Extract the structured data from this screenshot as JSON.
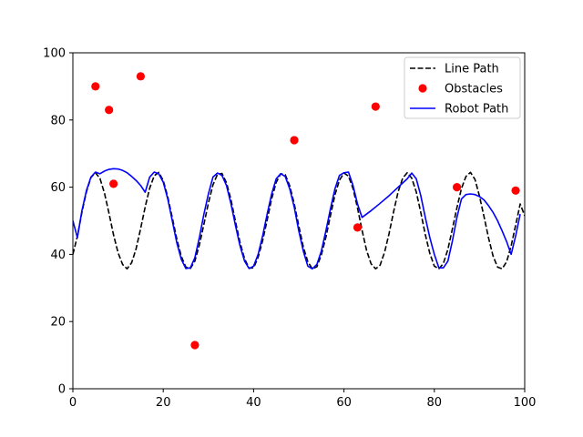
{
  "chart_data": {
    "type": "line",
    "title": "",
    "xlabel": "",
    "ylabel": "",
    "xlim": [
      0,
      100
    ],
    "ylim": [
      0,
      100
    ],
    "xticks": [
      0,
      20,
      40,
      60,
      80,
      100
    ],
    "yticks": [
      0,
      20,
      40,
      60,
      80,
      100
    ],
    "grid": false,
    "legend_position": "top-right",
    "series": [
      {
        "name": "Line Path",
        "kind": "line",
        "style": "dashed",
        "color": "#000000",
        "x": [
          0,
          1,
          2,
          3,
          4,
          5,
          6,
          7,
          8,
          9,
          10,
          11,
          12,
          13,
          14,
          15,
          16,
          17,
          18,
          19,
          20,
          21,
          22,
          23,
          24,
          25,
          26,
          27,
          28,
          29,
          30,
          31,
          32,
          33,
          34,
          35,
          36,
          37,
          38,
          39,
          40,
          41,
          42,
          43,
          44,
          45,
          46,
          47,
          48,
          49,
          50,
          51,
          52,
          53,
          54,
          55,
          56,
          57,
          58,
          59,
          60,
          61,
          62,
          63,
          64,
          65,
          66,
          67,
          68,
          69,
          70,
          71,
          72,
          73,
          74,
          75,
          76,
          77,
          78,
          79,
          80,
          81,
          82,
          83,
          84,
          85,
          86,
          87,
          88,
          89,
          90,
          91,
          92,
          93,
          94,
          95,
          96,
          97,
          98,
          99,
          100
        ],
        "y": [
          40,
          45.4,
          52.5,
          58.6,
          62.9,
          64.3,
          62.6,
          58.2,
          52.2,
          45.8,
          40.5,
          37,
          35.7,
          37.5,
          41.7,
          47.7,
          54.1,
          59.7,
          63.4,
          64.4,
          62,
          57.1,
          50.9,
          44.6,
          39.4,
          36.2,
          35.8,
          38,
          42.8,
          49,
          55.3,
          60.7,
          63.8,
          64.1,
          61.3,
          56.2,
          49.7,
          43.5,
          38.7,
          35.9,
          36,
          39.1,
          44.1,
          50.2,
          56.6,
          61.4,
          64,
          63.7,
          60.4,
          55,
          48.5,
          42.2,
          37.8,
          35.7,
          36.3,
          39.9,
          45.1,
          51.5,
          57.7,
          62.1,
          64.2,
          63.3,
          59.6,
          53.8,
          47.2,
          41.2,
          37.2,
          35.7,
          36.8,
          40.7,
          46.3,
          52.8,
          58.7,
          62.7,
          64.3,
          62.7,
          58.6,
          52.5,
          45.9,
          40.3,
          36.5,
          35.7,
          37.3,
          41.5,
          47.6,
          53.9,
          59.6,
          63.2,
          64.4,
          62.3,
          57.3,
          51.2,
          44.9,
          39.5,
          36.2,
          35.7,
          37.8,
          42.5,
          48.7,
          55,
          51.5
        ]
      },
      {
        "name": "Obstacles",
        "kind": "scatter",
        "color": "#ff0000",
        "x": [
          5,
          8,
          9,
          15,
          27,
          49,
          63,
          67,
          85,
          98
        ],
        "y": [
          90,
          83,
          61,
          93,
          13,
          74,
          48,
          84,
          60,
          59
        ]
      },
      {
        "name": "Robot Path",
        "kind": "line",
        "style": "solid",
        "color": "#0000ff",
        "x": [
          0,
          1,
          2,
          3,
          4,
          5,
          6,
          7,
          8,
          9,
          10,
          11,
          12,
          13,
          14,
          15,
          16,
          17,
          18,
          19,
          20,
          21,
          22,
          23,
          24,
          25,
          26,
          27,
          28,
          29,
          30,
          31,
          32,
          33,
          34,
          35,
          36,
          37,
          38,
          39,
          40,
          41,
          42,
          43,
          44,
          45,
          46,
          47,
          48,
          49,
          50,
          51,
          52,
          53,
          54,
          55,
          56,
          57,
          58,
          59,
          60,
          61,
          62,
          63,
          64,
          66,
          68,
          70,
          72,
          74,
          75,
          76,
          77,
          78,
          79,
          80,
          81,
          82,
          83,
          84,
          85,
          86,
          87,
          88,
          89,
          90,
          91,
          92,
          93,
          94,
          95,
          96,
          97,
          98,
          99
        ],
        "y": [
          50,
          45,
          53,
          59,
          63,
          64.5,
          64,
          64.8,
          65.3,
          65.5,
          65.4,
          65,
          64.3,
          63.2,
          62,
          60.5,
          58.5,
          63,
          64.5,
          64,
          61.5,
          56.5,
          50,
          43.5,
          38.5,
          35.8,
          36,
          39,
          45,
          52,
          58,
          63,
          64.2,
          63.5,
          60.5,
          55,
          48.5,
          42.5,
          38,
          35.8,
          36.5,
          40,
          45.5,
          52,
          58,
          62.5,
          64,
          63.2,
          59.5,
          54,
          47,
          41,
          36.5,
          35.7,
          37,
          41,
          47,
          53.5,
          59.5,
          63.5,
          64.3,
          64.5,
          60.5,
          55,
          51,
          53,
          55.2,
          57.5,
          60,
          62.5,
          64.2,
          62.5,
          57.5,
          51,
          45,
          40,
          36,
          36,
          38,
          44,
          51,
          56.5,
          57.8,
          58,
          57.8,
          57.2,
          56.2,
          54.5,
          52.5,
          50,
          47,
          43.8,
          40,
          45.5,
          52
        ]
      }
    ]
  }
}
